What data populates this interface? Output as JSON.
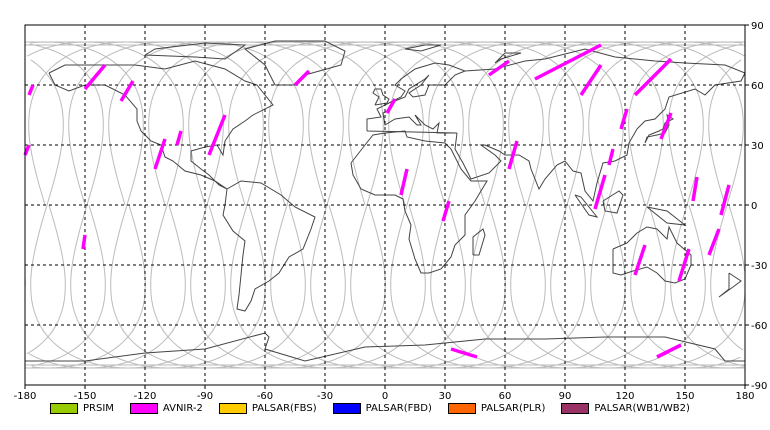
{
  "map": {
    "x_ticks": [
      -180,
      -150,
      -120,
      -90,
      -60,
      -30,
      0,
      30,
      60,
      90,
      120,
      150,
      180
    ],
    "y_ticks": [
      90,
      60,
      30,
      0,
      -30,
      -60,
      -90
    ],
    "xlim": [
      -180,
      180
    ],
    "ylim": [
      -90,
      90
    ],
    "grid": "dashed",
    "colors": {
      "grid": "#000000",
      "orbit": "#bbbbbb",
      "coast": "#444444",
      "swath": "#ff00ff"
    },
    "orbit_ascending_nodes": [
      -150,
      -110,
      -70,
      -30,
      10,
      50,
      90,
      130,
      170,
      -170,
      -130,
      -90,
      -50,
      -10,
      30,
      70,
      110,
      150
    ],
    "swaths": [
      {
        "sensor": "AVNIR-2",
        "points": [
          [
            -180,
            25
          ],
          [
            -178,
            30
          ]
        ]
      },
      {
        "sensor": "AVNIR-2",
        "points": [
          [
            -178,
            55
          ],
          [
            -176,
            60
          ]
        ]
      },
      {
        "sensor": "AVNIR-2",
        "points": [
          [
            -150,
            58
          ],
          [
            -140,
            70
          ]
        ]
      },
      {
        "sensor": "AVNIR-2",
        "points": [
          [
            -132,
            52
          ],
          [
            -126,
            62
          ]
        ]
      },
      {
        "sensor": "AVNIR-2",
        "points": [
          [
            -115,
            18
          ],
          [
            -110,
            33
          ]
        ]
      },
      {
        "sensor": "AVNIR-2",
        "points": [
          [
            -104,
            30
          ],
          [
            -102,
            37
          ]
        ]
      },
      {
        "sensor": "AVNIR-2",
        "points": [
          [
            -88,
            25
          ],
          [
            -80,
            45
          ]
        ]
      },
      {
        "sensor": "AVNIR-2",
        "points": [
          [
            -151,
            -22
          ],
          [
            -150,
            -15
          ]
        ]
      },
      {
        "sensor": "AVNIR-2",
        "points": [
          [
            -45,
            60
          ],
          [
            -38,
            67
          ]
        ]
      },
      {
        "sensor": "AVNIR-2",
        "points": [
          [
            1,
            46
          ],
          [
            5,
            53
          ]
        ]
      },
      {
        "sensor": "AVNIR-2",
        "points": [
          [
            8,
            5
          ],
          [
            11,
            18
          ]
        ]
      },
      {
        "sensor": "AVNIR-2",
        "points": [
          [
            29,
            -8
          ],
          [
            32,
            2
          ]
        ]
      },
      {
        "sensor": "AVNIR-2",
        "points": [
          [
            52,
            65
          ],
          [
            62,
            72
          ]
        ]
      },
      {
        "sensor": "AVNIR-2",
        "points": [
          [
            62,
            18
          ],
          [
            66,
            32
          ]
        ]
      },
      {
        "sensor": "AVNIR-2",
        "points": [
          [
            75,
            63
          ],
          [
            108,
            80
          ]
        ]
      },
      {
        "sensor": "AVNIR-2",
        "points": [
          [
            98,
            55
          ],
          [
            108,
            70
          ]
        ]
      },
      {
        "sensor": "AVNIR-2",
        "points": [
          [
            105,
            -2
          ],
          [
            110,
            15
          ]
        ]
      },
      {
        "sensor": "AVNIR-2",
        "points": [
          [
            118,
            38
          ],
          [
            121,
            48
          ]
        ]
      },
      {
        "sensor": "AVNIR-2",
        "points": [
          [
            112,
            20
          ],
          [
            114,
            28
          ]
        ]
      },
      {
        "sensor": "AVNIR-2",
        "points": [
          [
            125,
            55
          ],
          [
            143,
            73
          ]
        ]
      },
      {
        "sensor": "AVNIR-2",
        "points": [
          [
            138,
            33
          ],
          [
            143,
            46
          ]
        ]
      },
      {
        "sensor": "AVNIR-2",
        "points": [
          [
            125,
            -35
          ],
          [
            130,
            -20
          ]
        ]
      },
      {
        "sensor": "AVNIR-2",
        "points": [
          [
            147,
            -38
          ],
          [
            152,
            -22
          ]
        ]
      },
      {
        "sensor": "AVNIR-2",
        "points": [
          [
            154,
            2
          ],
          [
            156,
            14
          ]
        ]
      },
      {
        "sensor": "AVNIR-2",
        "points": [
          [
            162,
            -25
          ],
          [
            167,
            -12
          ]
        ]
      },
      {
        "sensor": "AVNIR-2",
        "points": [
          [
            168,
            -5
          ],
          [
            172,
            10
          ]
        ]
      },
      {
        "sensor": "AVNIR-2",
        "points": [
          [
            33,
            -72
          ],
          [
            46,
            -76
          ]
        ]
      },
      {
        "sensor": "AVNIR-2",
        "points": [
          [
            136,
            -76
          ],
          [
            148,
            -70
          ]
        ]
      }
    ]
  },
  "legend": [
    {
      "label": "PRSIM",
      "color": "#99cc00"
    },
    {
      "label": "AVNIR-2",
      "color": "#ff00ff"
    },
    {
      "label": "PALSAR(FBS)",
      "color": "#ffcc00"
    },
    {
      "label": "PALSAR(FBD)",
      "color": "#0000ff"
    },
    {
      "label": "PALSAR(PLR)",
      "color": "#ff6600"
    },
    {
      "label": "PALSAR(WB1/WB2)",
      "color": "#993366"
    }
  ]
}
